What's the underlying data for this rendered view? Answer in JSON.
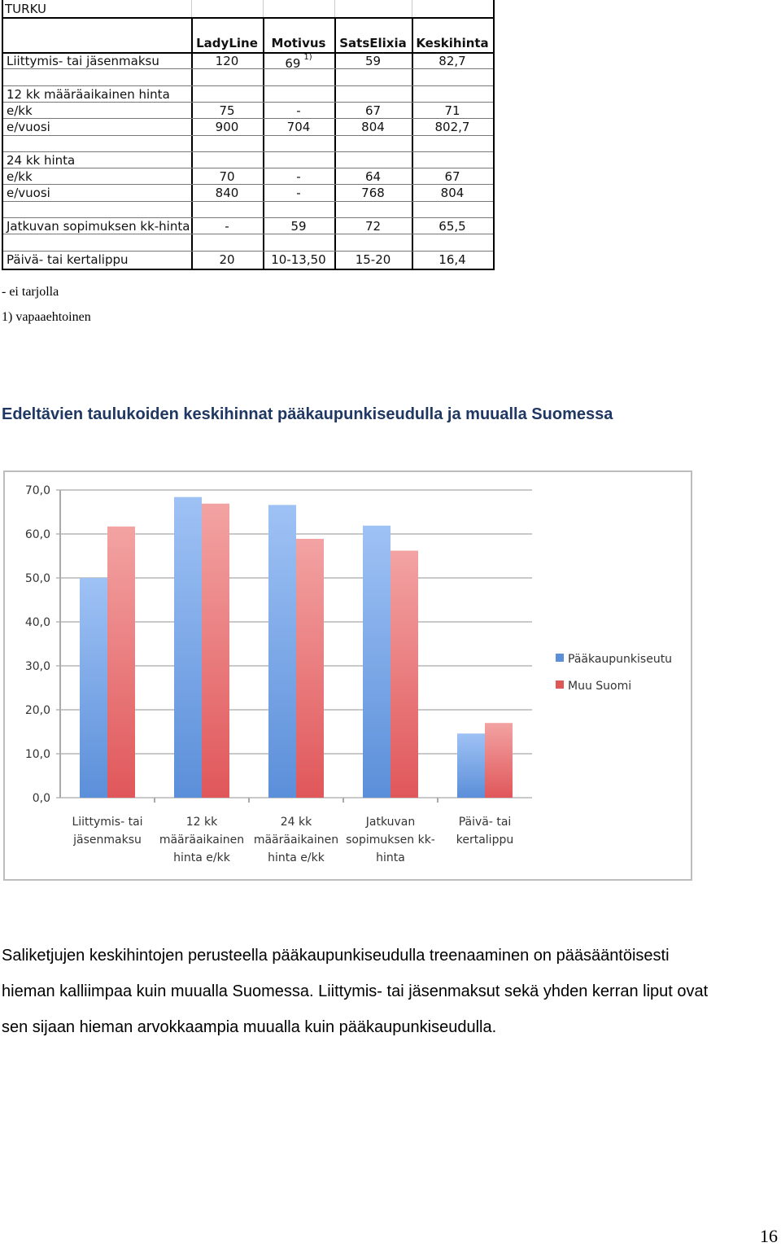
{
  "table": {
    "city": "TURKU",
    "columns": [
      "LadyLine",
      "Motivus",
      "SatsElixia",
      "Keskihinta"
    ],
    "rows": [
      {
        "label": "Liittymis- tai jäsenmaksu",
        "values": [
          "120",
          "69",
          "59",
          "82,7"
        ],
        "footnote_col": 1,
        "footnote": "1)"
      },
      {
        "label": "",
        "values": [
          "",
          "",
          "",
          ""
        ]
      },
      {
        "label": "12 kk määräaikainen hinta",
        "values": [
          "",
          "",
          "",
          ""
        ]
      },
      {
        "label": "e/kk",
        "values": [
          "75",
          "-",
          "67",
          "71"
        ]
      },
      {
        "label": "e/vuosi",
        "values": [
          "900",
          "704",
          "804",
          "802,7"
        ]
      },
      {
        "label": "",
        "values": [
          "",
          "",
          "",
          ""
        ]
      },
      {
        "label": "24 kk hinta",
        "values": [
          "",
          "",
          "",
          ""
        ]
      },
      {
        "label": "e/kk",
        "values": [
          "70",
          "-",
          "64",
          "67"
        ]
      },
      {
        "label": "e/vuosi",
        "values": [
          "840",
          "-",
          "768",
          "804"
        ]
      },
      {
        "label": "",
        "values": [
          "",
          "",
          "",
          ""
        ]
      },
      {
        "label": "Jatkuvan sopimuksen kk-hinta",
        "values": [
          "-",
          "59",
          "72",
          "65,5"
        ]
      },
      {
        "label": "",
        "values": [
          "",
          "",
          "",
          ""
        ]
      },
      {
        "label": "Päivä- tai kertalippu",
        "values": [
          "20",
          "10-13,50",
          "15-20",
          "16,4"
        ]
      }
    ]
  },
  "notes": [
    "- ei tarjolla",
    "1) vapaaehtoinen"
  ],
  "caption": "Edeltävien taulukoiden keskihinnat pääkaupunkiseudulla ja muualla Suomessa",
  "chart_data": {
    "type": "bar",
    "categories": [
      [
        "Liittymis- tai",
        "jäsenmaksu"
      ],
      [
        "12 kk",
        "määräaikainen",
        "hinta e/kk"
      ],
      [
        "24 kk",
        "määräaikainen",
        "hinta e/kk"
      ],
      [
        "Jatkuvan",
        "sopimuksen kk-",
        "hinta"
      ],
      [
        "Päivä- tai",
        "kertalippu"
      ]
    ],
    "series": [
      {
        "name": "Pääkaupunkiseutu",
        "values": [
          50.0,
          68.4,
          66.6,
          61.9,
          14.6
        ],
        "color": "#5b8fd9"
      },
      {
        "name": "Muu Suomi",
        "values": [
          61.7,
          66.9,
          58.9,
          56.2,
          17.0
        ],
        "color": "#e0575a"
      }
    ],
    "ylim": [
      0,
      70
    ],
    "yticks": [
      "0,0",
      "10,0",
      "20,0",
      "30,0",
      "40,0",
      "50,0",
      "60,0",
      "70,0"
    ],
    "grid": true,
    "legend": "right"
  },
  "paragraph": [
    "Saliketjujen keskihintojen perusteella pääkaupunkiseudulla treenaaminen on pääsääntöisesti",
    "hieman kalliimpaa kuin muualla Suomessa. Liittymis- tai jäsenmaksut sekä yhden kerran liput ovat",
    "sen sijaan hieman arvokkaampia muualla kuin pääkaupunkiseudulla."
  ],
  "page_number": "16"
}
